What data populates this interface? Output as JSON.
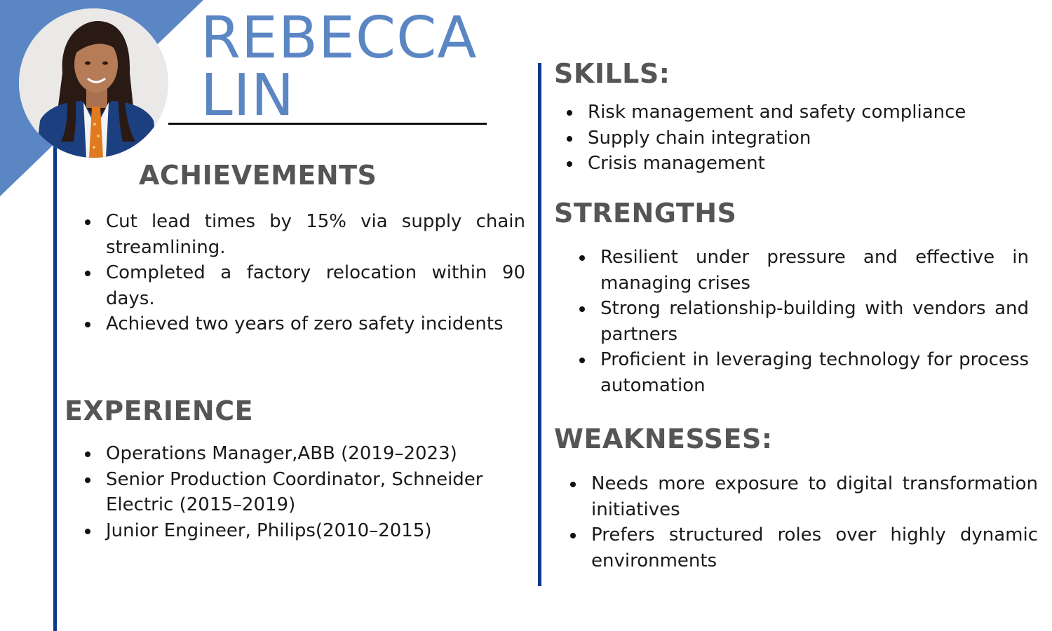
{
  "profile": {
    "first_name": "REBECCA",
    "last_name": "LIN",
    "photo_icon": "person-portrait-icon"
  },
  "colors": {
    "accent": "#5b86c4",
    "rule": "#0d3a8c",
    "heading": "#555555"
  },
  "achievements": {
    "title": "ACHIEVEMENTS",
    "items": [
      "Cut lead times by 15% via supply chain streamlining.",
      "Completed a factory relocation within 90 days.",
      "Achieved two years of zero safety incidents"
    ]
  },
  "experience": {
    "title": "EXPERIENCE",
    "items": [
      "Operations Manager,ABB (2019–2023)",
      "Senior Production Coordinator, Schneider Electric (2015–2019)",
      "Junior Engineer, Philips(2010–2015)"
    ]
  },
  "skills": {
    "title": "SKILLS:",
    "items": [
      "Risk management and safety compliance",
      "Supply chain integration",
      "Crisis management"
    ]
  },
  "strengths": {
    "title": "STRENGTHS",
    "items": [
      "Resilient under pressure and effective in managing crises",
      "Strong relationship-building with vendors and partners",
      "Proficient in leveraging technology for process automation"
    ]
  },
  "weaknesses": {
    "title": "WEAKNESSES:",
    "items": [
      "Needs more exposure to digital transformation initiatives",
      "Prefers structured roles over highly dynamic environments"
    ]
  }
}
